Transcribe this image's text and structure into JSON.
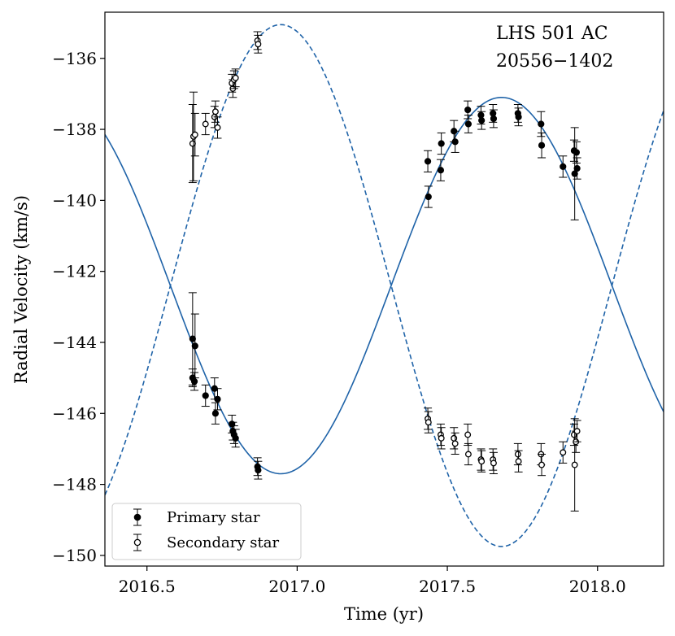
{
  "chart_data": {
    "type": "scatter",
    "annotation_lines": [
      "LHS 501 AC",
      "20556−1402"
    ],
    "xlabel": "Time (yr)",
    "ylabel": "Radial Velocity  (km/s)",
    "xlim": [
      2016.36,
      2018.22
    ],
    "ylim": [
      -150.3,
      -134.7
    ],
    "x_ticks": [
      2016.5,
      2017.0,
      2017.5,
      2018.0
    ],
    "x_tick_labels": [
      "2016.5",
      "2017.0",
      "2017.5",
      "2018.0"
    ],
    "y_ticks": [
      -150,
      -148,
      -146,
      -144,
      -142,
      -140,
      -138,
      -136
    ],
    "y_tick_labels": [
      "−150",
      "−148",
      "−146",
      "−144",
      "−142",
      "−140",
      "−138",
      "−136"
    ],
    "legend": {
      "position": "lower-left",
      "entries": [
        {
          "label": "Primary star",
          "marker": "filled"
        },
        {
          "label": "Secondary star",
          "marker": "open"
        }
      ]
    },
    "colors": {
      "model": "#1f63a8",
      "points": "#000000",
      "axes": "#000000"
    },
    "model": {
      "type": "sinusoid",
      "gamma": -142.4,
      "primary_amplitude": 5.3,
      "secondary_amplitude": 7.35,
      "period_yr": 1.47,
      "phase_ref_yr": 2017.313,
      "primary_style": "solid",
      "secondary_style": "dashed"
    },
    "series": [
      {
        "name": "Primary star",
        "points": [
          {
            "x": 2016.652,
            "y": -143.9,
            "err": 1.3
          },
          {
            "x": 2016.66,
            "y": -144.1,
            "err": 0.9
          },
          {
            "x": 2016.652,
            "y": -145.0,
            "err": 0.25
          },
          {
            "x": 2016.658,
            "y": -145.1,
            "err": 0.25
          },
          {
            "x": 2016.695,
            "y": -145.5,
            "err": 0.3
          },
          {
            "x": 2016.725,
            "y": -145.3,
            "err": 0.3
          },
          {
            "x": 2016.728,
            "y": -146.0,
            "err": 0.3
          },
          {
            "x": 2016.735,
            "y": -145.6,
            "err": 0.3
          },
          {
            "x": 2016.783,
            "y": -146.3,
            "err": 0.25
          },
          {
            "x": 2016.786,
            "y": -146.5,
            "err": 0.25
          },
          {
            "x": 2016.79,
            "y": -146.6,
            "err": 0.25
          },
          {
            "x": 2016.795,
            "y": -146.7,
            "err": 0.25
          },
          {
            "x": 2016.868,
            "y": -147.5,
            "err": 0.25
          },
          {
            "x": 2016.87,
            "y": -147.6,
            "err": 0.25
          },
          {
            "x": 2017.435,
            "y": -138.9,
            "err": 0.3
          },
          {
            "x": 2017.437,
            "y": -139.9,
            "err": 0.3
          },
          {
            "x": 2017.478,
            "y": -139.15,
            "err": 0.3
          },
          {
            "x": 2017.48,
            "y": -138.4,
            "err": 0.3
          },
          {
            "x": 2017.522,
            "y": -138.05,
            "err": 0.3
          },
          {
            "x": 2017.526,
            "y": -138.35,
            "err": 0.3
          },
          {
            "x": 2017.568,
            "y": -137.45,
            "err": 0.25
          },
          {
            "x": 2017.57,
            "y": -137.85,
            "err": 0.25
          },
          {
            "x": 2017.612,
            "y": -137.6,
            "err": 0.25
          },
          {
            "x": 2017.614,
            "y": -137.75,
            "err": 0.25
          },
          {
            "x": 2017.652,
            "y": -137.55,
            "err": 0.25
          },
          {
            "x": 2017.654,
            "y": -137.7,
            "err": 0.25
          },
          {
            "x": 2017.735,
            "y": -137.55,
            "err": 0.25
          },
          {
            "x": 2017.737,
            "y": -137.65,
            "err": 0.25
          },
          {
            "x": 2017.812,
            "y": -137.85,
            "err": 0.35
          },
          {
            "x": 2017.814,
            "y": -138.45,
            "err": 0.35
          },
          {
            "x": 2017.885,
            "y": -139.05,
            "err": 0.3
          },
          {
            "x": 2017.922,
            "y": -138.6,
            "err": 0.3
          },
          {
            "x": 2017.924,
            "y": -139.25,
            "err": 1.3
          },
          {
            "x": 2017.93,
            "y": -138.65,
            "err": 0.3
          },
          {
            "x": 2017.932,
            "y": -139.1,
            "err": 0.3
          }
        ]
      },
      {
        "name": "Secondary star",
        "points": [
          {
            "x": 2016.652,
            "y": -138.4,
            "err": 1.1
          },
          {
            "x": 2016.655,
            "y": -138.2,
            "err": 1.25
          },
          {
            "x": 2016.66,
            "y": -138.15,
            "err": 0.6
          },
          {
            "x": 2016.695,
            "y": -137.85,
            "err": 0.3
          },
          {
            "x": 2016.725,
            "y": -137.65,
            "err": 0.3
          },
          {
            "x": 2016.728,
            "y": -137.5,
            "err": 0.3
          },
          {
            "x": 2016.735,
            "y": -137.95,
            "err": 0.3
          },
          {
            "x": 2016.783,
            "y": -136.7,
            "err": 0.25
          },
          {
            "x": 2016.786,
            "y": -136.85,
            "err": 0.25
          },
          {
            "x": 2016.79,
            "y": -136.6,
            "err": 0.25
          },
          {
            "x": 2016.795,
            "y": -136.55,
            "err": 0.25
          },
          {
            "x": 2016.868,
            "y": -135.5,
            "err": 0.25
          },
          {
            "x": 2016.87,
            "y": -135.6,
            "err": 0.25
          },
          {
            "x": 2017.435,
            "y": -146.15,
            "err": 0.3
          },
          {
            "x": 2017.437,
            "y": -146.25,
            "err": 0.3
          },
          {
            "x": 2017.478,
            "y": -146.6,
            "err": 0.3
          },
          {
            "x": 2017.48,
            "y": -146.7,
            "err": 0.3
          },
          {
            "x": 2017.522,
            "y": -146.7,
            "err": 0.3
          },
          {
            "x": 2017.526,
            "y": -146.85,
            "err": 0.3
          },
          {
            "x": 2017.568,
            "y": -146.6,
            "err": 0.3
          },
          {
            "x": 2017.57,
            "y": -147.15,
            "err": 0.3
          },
          {
            "x": 2017.612,
            "y": -147.3,
            "err": 0.3
          },
          {
            "x": 2017.614,
            "y": -147.35,
            "err": 0.3
          },
          {
            "x": 2017.652,
            "y": -147.3,
            "err": 0.3
          },
          {
            "x": 2017.654,
            "y": -147.4,
            "err": 0.3
          },
          {
            "x": 2017.735,
            "y": -147.15,
            "err": 0.3
          },
          {
            "x": 2017.737,
            "y": -147.35,
            "err": 0.3
          },
          {
            "x": 2017.812,
            "y": -147.15,
            "err": 0.3
          },
          {
            "x": 2017.814,
            "y": -147.45,
            "err": 0.3
          },
          {
            "x": 2017.885,
            "y": -147.1,
            "err": 0.3
          },
          {
            "x": 2017.922,
            "y": -146.6,
            "err": 0.3
          },
          {
            "x": 2017.924,
            "y": -147.45,
            "err": 1.3
          },
          {
            "x": 2017.928,
            "y": -146.8,
            "err": 0.3
          },
          {
            "x": 2017.932,
            "y": -146.5,
            "err": 0.3
          }
        ]
      }
    ]
  }
}
